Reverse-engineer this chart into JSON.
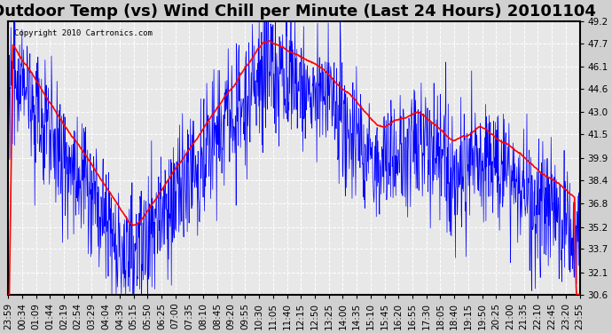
{
  "title": "Outdoor Temp (vs) Wind Chill per Minute (Last 24 Hours) 20101104",
  "copyright_text": "Copyright 2010 Cartronics.com",
  "ylim": [
    30.6,
    49.2
  ],
  "yticks": [
    30.6,
    32.1,
    33.7,
    35.2,
    36.8,
    38.4,
    39.9,
    41.5,
    43.0,
    44.6,
    46.1,
    47.7,
    49.2
  ],
  "xtick_labels": [
    "23:59",
    "00:34",
    "01:09",
    "01:44",
    "02:19",
    "02:54",
    "03:29",
    "04:04",
    "04:39",
    "05:15",
    "05:50",
    "06:25",
    "07:00",
    "07:35",
    "08:10",
    "08:45",
    "09:20",
    "09:55",
    "10:30",
    "11:05",
    "11:40",
    "12:15",
    "12:50",
    "13:25",
    "14:00",
    "14:35",
    "15:10",
    "15:45",
    "16:20",
    "16:55",
    "17:30",
    "18:05",
    "18:40",
    "19:15",
    "19:50",
    "20:25",
    "21:00",
    "21:35",
    "22:10",
    "22:45",
    "23:20",
    "23:55"
  ],
  "background_color": "#e8e8e8",
  "grid_color": "#ffffff",
  "temp_line_color": "#ff0000",
  "wind_chill_color": "#0000ff",
  "title_fontsize": 13,
  "tick_fontsize": 7.5
}
